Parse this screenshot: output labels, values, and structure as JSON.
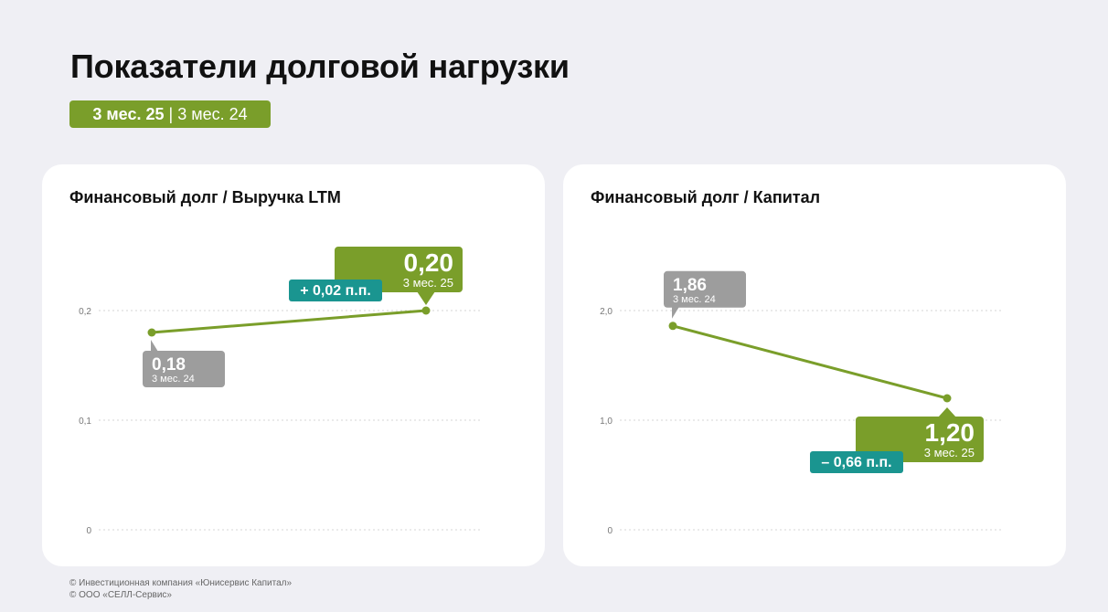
{
  "title": "Показатели долговой нагрузки",
  "period_badge": {
    "current": "3 мес. 25",
    "separator": "|",
    "previous": "3 мес. 24"
  },
  "colors": {
    "accent_green": "#7a9e2a",
    "delta_teal": "#1a9590",
    "prev_gray": "#9d9d9d",
    "background": "#efeff4"
  },
  "footer": {
    "line1": "© Инвестиционная компания «Юнисервис Капитал»",
    "line2": "© ООО «СЕЛЛ-Сервис»"
  },
  "chart_data": [
    {
      "type": "line",
      "title": "Финансовый долг / Выручка LTM",
      "xlabel": "",
      "ylabel": "",
      "categories": [
        "3 мес. 24",
        "3 мес. 25"
      ],
      "values": [
        0.18,
        0.2
      ],
      "value_labels": [
        "0,18",
        "0,20"
      ],
      "period_labels": [
        "3 мес. 24",
        "3 мес. 25"
      ],
      "delta_label": "+ 0,02 п.п.",
      "ylim": [
        0,
        0.2
      ],
      "yticks": [
        0,
        0.1,
        0.2
      ],
      "ytick_labels": [
        "0",
        "0,1",
        "0,2"
      ],
      "grid": true
    },
    {
      "type": "line",
      "title": "Финансовый долг / Капитал",
      "xlabel": "",
      "ylabel": "",
      "categories": [
        "3 мес. 24",
        "3 мес. 25"
      ],
      "values": [
        1.86,
        1.2
      ],
      "value_labels": [
        "1,86",
        "1,20"
      ],
      "period_labels": [
        "3 мес. 24",
        "3 мес. 25"
      ],
      "delta_label": "– 0,66 п.п.",
      "ylim": [
        0,
        2.0
      ],
      "yticks": [
        0,
        1.0,
        2.0
      ],
      "ytick_labels": [
        "0",
        "1,0",
        "2,0"
      ],
      "grid": true
    }
  ]
}
